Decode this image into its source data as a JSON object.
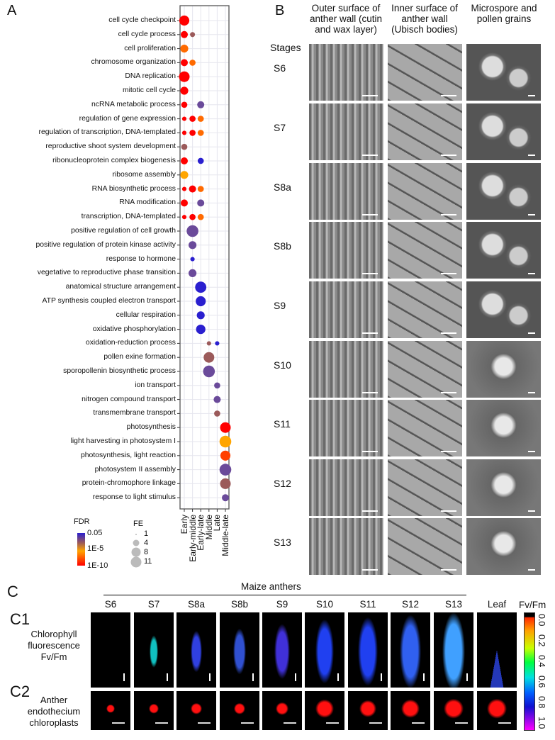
{
  "panel_labels": {
    "a": "A",
    "b": "B",
    "c": "C",
    "c1": "C1",
    "c2": "C2"
  },
  "chart_data": {
    "type": "scatter",
    "subtype": "bubble",
    "title": "",
    "x_categories": [
      "Early",
      "Early-middle",
      "Early-late",
      "Middle",
      "Late",
      "Middle-late"
    ],
    "y_categories": [
      "cell cycle checkpoint",
      "cell cycle process",
      "cell proliferation",
      "chromosome organization",
      "DNA replication",
      "mitotic cell cycle",
      "ncRNA metabolic process",
      "regulation of gene expression",
      "regulation of transcription, DNA-templated",
      "reproductive shoot system development",
      "ribonucleoprotein complex biogenesis",
      "ribosome assembly",
      "RNA biosynthetic process",
      "RNA modification",
      "transcription, DNA-templated",
      "positive regulation of cell growth",
      "positive regulation of protein kinase activity",
      "response to hormone",
      "vegetative to reproductive phase transition",
      "anatomical structure arrangement",
      "ATP synthesis coupled electron transport",
      "cellular respiration",
      "oxidative phosphorylation",
      "oxidation-reduction process",
      "pollen exine formation",
      "sporopollenin biosynthetic process",
      "ion transport",
      "nitrogen compound transport",
      "transmembrane transport",
      "photosynthesis",
      "light harvesting in photosystem I",
      "photosynthesis, light reaction",
      "photosystem II assembly",
      "protein-chromophore linkage",
      "response to light stimulus"
    ],
    "points": [
      {
        "term": 0,
        "group": 0,
        "fe": 8,
        "color": "#ff0000"
      },
      {
        "term": 1,
        "group": 0,
        "fe": 4,
        "color": "#ff0000"
      },
      {
        "term": 1,
        "group": 1,
        "fe": 2,
        "color": "#9b5a5a"
      },
      {
        "term": 2,
        "group": 0,
        "fe": 5,
        "color": "#ff6a00"
      },
      {
        "term": 3,
        "group": 0,
        "fe": 4,
        "color": "#ff0000"
      },
      {
        "term": 3,
        "group": 1,
        "fe": 3,
        "color": "#ff6a00"
      },
      {
        "term": 4,
        "group": 0,
        "fe": 9,
        "color": "#ff0000"
      },
      {
        "term": 5,
        "group": 0,
        "fe": 5,
        "color": "#ff0000"
      },
      {
        "term": 6,
        "group": 0,
        "fe": 3,
        "color": "#ff0000"
      },
      {
        "term": 6,
        "group": 2,
        "fe": 4,
        "color": "#6a4a9a"
      },
      {
        "term": 7,
        "group": 0,
        "fe": 1.5,
        "color": "#ff0000"
      },
      {
        "term": 7,
        "group": 1,
        "fe": 3,
        "color": "#ff0000"
      },
      {
        "term": 7,
        "group": 2,
        "fe": 3,
        "color": "#ff6a00"
      },
      {
        "term": 8,
        "group": 0,
        "fe": 1.5,
        "color": "#ff0000"
      },
      {
        "term": 8,
        "group": 1,
        "fe": 3,
        "color": "#ff0000"
      },
      {
        "term": 8,
        "group": 2,
        "fe": 3,
        "color": "#ff6a00"
      },
      {
        "term": 9,
        "group": 0,
        "fe": 3,
        "color": "#9b5a5a"
      },
      {
        "term": 10,
        "group": 0,
        "fe": 4,
        "color": "#ff0000"
      },
      {
        "term": 10,
        "group": 2,
        "fe": 3,
        "color": "#2a1fcf"
      },
      {
        "term": 11,
        "group": 0,
        "fe": 5,
        "color": "#ffa500"
      },
      {
        "term": 12,
        "group": 0,
        "fe": 1.5,
        "color": "#ff0000"
      },
      {
        "term": 12,
        "group": 1,
        "fe": 4,
        "color": "#ff0000"
      },
      {
        "term": 12,
        "group": 2,
        "fe": 3,
        "color": "#ff6a00"
      },
      {
        "term": 13,
        "group": 0,
        "fe": 4,
        "color": "#ff0000"
      },
      {
        "term": 13,
        "group": 2,
        "fe": 4,
        "color": "#6a4a9a"
      },
      {
        "term": 14,
        "group": 0,
        "fe": 1.5,
        "color": "#ff0000"
      },
      {
        "term": 14,
        "group": 1,
        "fe": 3,
        "color": "#ff0000"
      },
      {
        "term": 14,
        "group": 2,
        "fe": 3,
        "color": "#ff6a00"
      },
      {
        "term": 15,
        "group": 1,
        "fe": 11,
        "color": "#6a4a9a"
      },
      {
        "term": 16,
        "group": 1,
        "fe": 5,
        "color": "#6a4a9a"
      },
      {
        "term": 17,
        "group": 1,
        "fe": 1.5,
        "color": "#2a1fcf"
      },
      {
        "term": 18,
        "group": 1,
        "fe": 5,
        "color": "#6a4a9a"
      },
      {
        "term": 19,
        "group": 2,
        "fe": 10,
        "color": "#2a1fcf"
      },
      {
        "term": 20,
        "group": 2,
        "fe": 8,
        "color": "#2a1fcf"
      },
      {
        "term": 21,
        "group": 2,
        "fe": 5,
        "color": "#2a1fcf"
      },
      {
        "term": 22,
        "group": 2,
        "fe": 7,
        "color": "#2a1fcf"
      },
      {
        "term": 23,
        "group": 3,
        "fe": 1.5,
        "color": "#9b5a5a"
      },
      {
        "term": 23,
        "group": 4,
        "fe": 1.5,
        "color": "#2a1fcf"
      },
      {
        "term": 24,
        "group": 3,
        "fe": 9,
        "color": "#9b5a5a"
      },
      {
        "term": 25,
        "group": 3,
        "fe": 11,
        "color": "#6a4a9a"
      },
      {
        "term": 26,
        "group": 4,
        "fe": 3,
        "color": "#6a4a9a"
      },
      {
        "term": 27,
        "group": 4,
        "fe": 4,
        "color": "#6a4a9a"
      },
      {
        "term": 28,
        "group": 4,
        "fe": 3,
        "color": "#9b5a5a"
      },
      {
        "term": 29,
        "group": 5,
        "fe": 9,
        "color": "#ff0000"
      },
      {
        "term": 30,
        "group": 5,
        "fe": 11,
        "color": "#ffa500"
      },
      {
        "term": 31,
        "group": 5,
        "fe": 8,
        "color": "#ff4000"
      },
      {
        "term": 32,
        "group": 5,
        "fe": 11,
        "color": "#6a4a9a"
      },
      {
        "term": 33,
        "group": 5,
        "fe": 9,
        "color": "#9b5a5a"
      },
      {
        "term": 34,
        "group": 5,
        "fe": 4,
        "color": "#6a4a9a"
      }
    ],
    "legend_fdr": {
      "title": "FDR",
      "ticks": [
        "0.05",
        "1E-5",
        "1E-10"
      ],
      "colors": [
        "#2a1fcf",
        "#9b5a5a",
        "#ffa500",
        "#ff0000"
      ]
    },
    "legend_fe": {
      "title": "FE",
      "values": [
        "1",
        "4",
        "8",
        "11"
      ]
    },
    "grid": true,
    "legend_position": "bottom-left"
  },
  "panel_b": {
    "column_headers": [
      "Outer surface of anther wall (cutin and wax layer)",
      "Inner surface of anther wall (Ubisch bodies)",
      "Microspore and pollen grains"
    ],
    "stages_label": "Stages",
    "stages": [
      "S6",
      "S7",
      "S8a",
      "S8b",
      "S9",
      "S10",
      "S11",
      "S12",
      "S13"
    ]
  },
  "panel_c": {
    "group_title": "Maize anthers",
    "columns": [
      "S6",
      "S7",
      "S8a",
      "S8b",
      "S9",
      "S10",
      "S11",
      "S12",
      "S13",
      "Leaf"
    ],
    "c1_label": "Chlorophyll fluorescence Fv/Fm",
    "c2_label": "Anther endothecium chloroplasts",
    "colorbar_title": "Fv/Fm",
    "colorbar_ticks": [
      "0.0",
      "0.2",
      "0.4",
      "0.6",
      "0.8",
      "1.0"
    ]
  }
}
